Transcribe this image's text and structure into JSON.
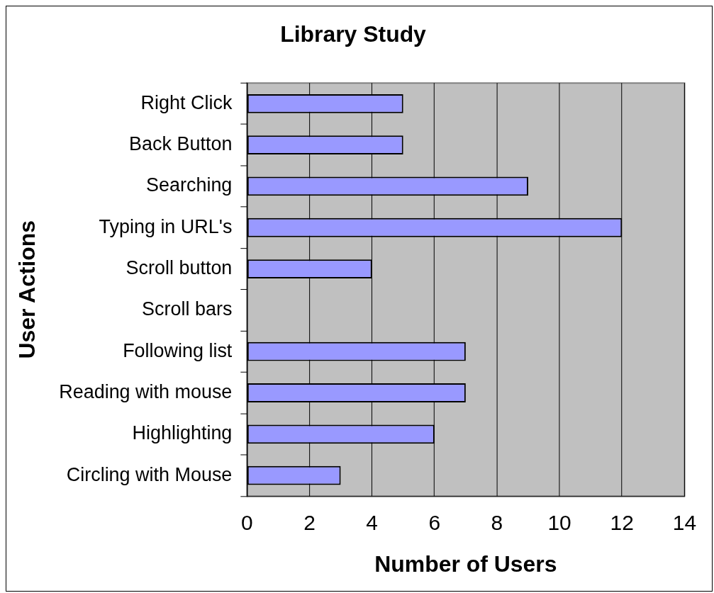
{
  "chart_data": {
    "type": "bar",
    "orientation": "horizontal",
    "title": "Library Study",
    "xlabel": "Number of Users",
    "ylabel": "User Actions",
    "categories": [
      "Right Click",
      "Back Button",
      "Searching",
      "Typing in URL's",
      "Scroll button",
      "Scroll bars",
      "Following list",
      "Reading with mouse",
      "Highlighting",
      "Circling with Mouse"
    ],
    "values": [
      5,
      5,
      9,
      12,
      4,
      0,
      7,
      7,
      6,
      3
    ],
    "color": "#9999ff",
    "xlim": [
      0,
      14
    ],
    "xticks": [
      0,
      2,
      4,
      6,
      8,
      10,
      12,
      14
    ],
    "grid": "x"
  }
}
